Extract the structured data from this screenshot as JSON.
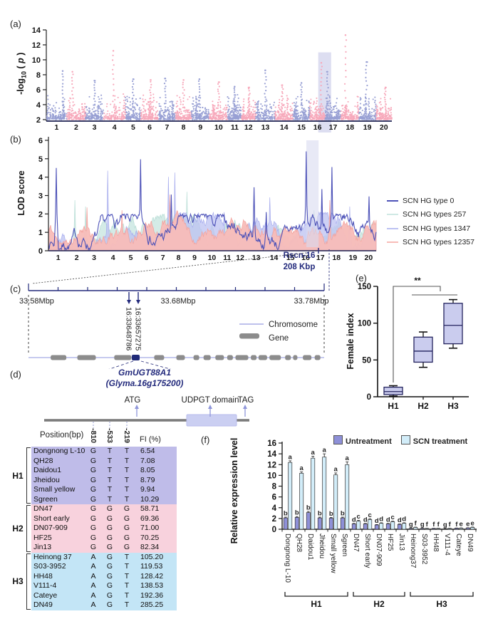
{
  "colors": {
    "manhattan_odd": "#98a0d4",
    "manhattan_even": "#f7a9bb",
    "highlight_band": "#d9daf0",
    "navy": "#232a7c",
    "axis": "#1c2050",
    "lod_type0": "#4d52b8",
    "lod_257_fill": "#cfe9e4",
    "lod_1347_fill": "#bcc1f2",
    "lod_12357_fill": "#f8bcb8",
    "gene_gray": "#8c8c8c",
    "chromosome_line": "#b4b8ea",
    "domain_fill": "#cbcff2",
    "h1_bg": "#bfbce9",
    "h2_bg": "#f8d2dd",
    "h3_bg": "#c3e5f6",
    "box_fill": "#caccee",
    "bar_untreat": "#8e90d8",
    "bar_scn": "#d2edf9"
  },
  "panels": {
    "a": {
      "label": "(a)"
    },
    "b": {
      "label": "(b)"
    },
    "c": {
      "label": "(c)",
      "region_name": "Rscn-16",
      "region_size": "208 Kbp",
      "ruler_labels": [
        "33.58Mbp",
        "33.68Mbp",
        "33.78Mbp"
      ],
      "snps": [
        "16:33648786",
        "16:33657275"
      ],
      "legend": {
        "chromosome": "Chromosome",
        "gene": "Gene"
      }
    },
    "d": {
      "label": "(d)",
      "gene_name": "GmUGT88A1",
      "gene_id": "(Glyma.16g175200)",
      "features": [
        "ATG",
        "UDPGT domain",
        "TAG"
      ],
      "position_header": "Position(bp)",
      "position_columns": [
        "-810",
        "-533",
        "-219"
      ],
      "fi_header": "FI (%)",
      "haplotypes": [
        {
          "name": "H1",
          "rows": [
            [
              "Dongnong L-10",
              "G",
              "T",
              "T",
              "6.54"
            ],
            [
              "QH28",
              "G",
              "T",
              "T",
              "7.08"
            ],
            [
              "Daidou1",
              "G",
              "T",
              "T",
              "8.05"
            ],
            [
              "Jheidou",
              "G",
              "T",
              "T",
              "8.79"
            ],
            [
              "Small yellow",
              "G",
              "T",
              "T",
              "9.94"
            ],
            [
              "Sgreen",
              "G",
              "T",
              "T",
              "10.29"
            ]
          ]
        },
        {
          "name": "H2",
          "rows": [
            [
              "DN47",
              "G",
              "G",
              "G",
              "58.71"
            ],
            [
              "Short early",
              "G",
              "G",
              "G",
              "69.36"
            ],
            [
              "DN07-909",
              "G",
              "G",
              "G",
              "71.00"
            ],
            [
              "HF25",
              "G",
              "G",
              "G",
              "70.25"
            ],
            [
              "Jin13",
              "G",
              "G",
              "G",
              "82.34"
            ]
          ]
        },
        {
          "name": "H3",
          "rows": [
            [
              "Heinong 37",
              "A",
              "G",
              "T",
              "105.20"
            ],
            [
              "S03-3952",
              "A",
              "G",
              "T",
              "119.53"
            ],
            [
              "HH48",
              "A",
              "G",
              "T",
              "128.42"
            ],
            [
              "V111-4",
              "A",
              "G",
              "T",
              "138.53"
            ],
            [
              "Cateye",
              "A",
              "G",
              "T",
              "192.36"
            ],
            [
              "DN49",
              "A",
              "G",
              "T",
              "285.25"
            ]
          ]
        }
      ]
    },
    "e": {
      "label": "(e)"
    },
    "f": {
      "label": "(f)"
    }
  },
  "chart_data": [
    {
      "id": "manhattan",
      "type": "scatter",
      "ylabel": "-log10(p)",
      "ylabel_parts": {
        "pre": "-log",
        "sub": "10",
        "open": " ( ",
        "p": "p",
        "close": " )"
      },
      "ylim": [
        1.8,
        14
      ],
      "yticks": [
        2,
        4,
        6,
        8,
        10,
        12,
        14
      ],
      "categories": [
        "1",
        "2",
        "3",
        "4",
        "5",
        "6",
        "7",
        "8",
        "9",
        "10",
        "11",
        "12",
        "13",
        "14",
        "15",
        "16",
        "17",
        "18",
        "19",
        "20"
      ],
      "chrom_rel_widths": [
        1.15,
        1.05,
        1.0,
        1.25,
        0.85,
        1.0,
        0.95,
        0.9,
        1.0,
        1.05,
        0.75,
        0.8,
        1.1,
        1.0,
        0.95,
        0.85,
        0.9,
        1.0,
        0.95,
        0.9
      ],
      "chrom_peak_values": [
        8.5,
        8.4,
        7.2,
        11.2,
        7.4,
        7.3,
        7.5,
        7.3,
        7.4,
        7.0,
        6.4,
        6.3,
        8.6,
        6.6,
        6.9,
        9.6,
        8.4,
        13.3,
        9.7,
        6.3
      ],
      "chrom_peak_fracs": [
        0.8,
        0.3,
        0.5,
        0.45,
        0.5,
        0.55,
        0.4,
        0.5,
        0.45,
        0.5,
        0.5,
        0.55,
        0.5,
        0.4,
        0.5,
        0.75,
        0.15,
        0.25,
        0.45,
        0.6
      ],
      "highlight_chr_range": [
        15.55,
        16.38
      ],
      "grid": false,
      "legend_position": "none"
    },
    {
      "id": "lod",
      "type": "line",
      "ylabel": "LOD score",
      "ylim": [
        0,
        6
      ],
      "yticks": [
        0,
        1,
        2,
        3,
        4,
        5,
        6
      ],
      "categories": [
        "1",
        "2",
        "3",
        "4",
        "5",
        "6",
        "7",
        "8",
        "9",
        "10",
        "11",
        "12",
        "13",
        "14",
        "15",
        "16",
        "17",
        "18",
        "19",
        "20"
      ],
      "series": [
        {
          "name": "SCN HG type 0",
          "color": "#4d52b8",
          "style": "line",
          "peaks": [
            [
              0.5,
              4.5
            ],
            [
              5.62,
              4.97
            ],
            [
              7.5,
              3.05
            ],
            [
              12.55,
              3.45
            ],
            [
              13.3,
              2.1
            ],
            [
              15.75,
              5.4
            ],
            [
              16.7,
              3.35
            ],
            [
              17.3,
              4.55
            ],
            [
              19.55,
              2.95
            ]
          ]
        },
        {
          "name": "SCN HG types 257",
          "color": "#cfe9e4",
          "style": "area",
          "peaks": [
            [
              1.6,
              2.75
            ],
            [
              2.25,
              2.4
            ],
            [
              8.45,
              3.2
            ],
            [
              16.2,
              2.2
            ]
          ]
        },
        {
          "name": "SCN HG types 1347",
          "color": "#bcc1f2",
          "style": "area",
          "peaks": [
            [
              3.62,
              4.35
            ],
            [
              7.3,
              4.02
            ],
            [
              7.72,
              4.25
            ],
            [
              10.7,
              2.1
            ],
            [
              13.5,
              2.9
            ],
            [
              18.4,
              2.4
            ]
          ]
        },
        {
          "name": "SCN HG types 12357",
          "color": "#f8bcb8",
          "style": "area",
          "peaks": [
            [
              2.35,
              2.35
            ],
            [
              4.5,
              2.2
            ],
            [
              7.42,
              3.05
            ],
            [
              17.15,
              2.75
            ]
          ]
        }
      ],
      "highlight_chr_range": [
        15.55,
        16.38
      ],
      "annotation": {
        "name": "Rscn-16",
        "size": "208 Kbp"
      },
      "legend_position": "right"
    },
    {
      "id": "female-index",
      "type": "box",
      "ylabel": "Female index",
      "ylim": [
        0,
        150
      ],
      "yticks": [
        0,
        50,
        100,
        150
      ],
      "categories": [
        "H1",
        "H2",
        "H3"
      ],
      "boxes": [
        {
          "whisker_low": 1,
          "q1": 3,
          "median": 7,
          "q3": 13,
          "whisker_high": 15
        },
        {
          "whisker_low": 40,
          "q1": 47,
          "median": 62,
          "q3": 81,
          "whisker_high": 88
        },
        {
          "whisker_low": 66,
          "q1": 72,
          "median": 97,
          "q3": 127,
          "whisker_high": 132
        }
      ],
      "significance": "**"
    },
    {
      "id": "expression",
      "type": "bar",
      "ylabel": "Relative expression level",
      "ylim": [
        0,
        16
      ],
      "yticks": [
        0,
        2,
        4,
        6,
        8,
        10,
        12,
        14,
        16
      ],
      "categories": [
        "Dongnong L-10",
        "QH28",
        "Daidou1",
        "Jheidou",
        "Small yellow",
        "Sgreen",
        "DN47",
        "Short early",
        "DN07-909",
        "HF25",
        "Jin13",
        "Heinong37",
        "S03-3952",
        "HH48",
        "V111-4",
        "Cateye",
        "DN49"
      ],
      "groups": [
        {
          "label": "H1",
          "from": 0,
          "to": 5
        },
        {
          "label": "H2",
          "from": 6,
          "to": 10
        },
        {
          "label": "H3",
          "from": 11,
          "to": 16
        }
      ],
      "series": [
        {
          "name": "Untreatment",
          "color": "#8e90d8",
          "values": [
            2.1,
            2.2,
            3.1,
            2.1,
            2.05,
            2.1,
            1.0,
            1.0,
            0.8,
            1.0,
            0.9,
            0.15,
            0.15,
            0.15,
            0.1,
            0.2,
            0.25
          ],
          "errors": [
            0.15,
            0.15,
            0.2,
            0.15,
            0.15,
            0.15,
            0.08,
            0.08,
            0.08,
            0.08,
            0.08,
            0.03,
            0.03,
            0.03,
            0.03,
            0.03,
            0.03
          ],
          "letters": [
            "b",
            "b",
            "b",
            "b",
            "b",
            "b",
            "d",
            "d",
            "d",
            "d",
            "d",
            "g",
            "g",
            "f",
            "g",
            "f",
            "e"
          ]
        },
        {
          "name": "SCN treatment",
          "color": "#d2edf9",
          "values": [
            12.4,
            10.4,
            13.2,
            13.4,
            10.1,
            12.0,
            1.5,
            1.8,
            1.1,
            1.4,
            1.1,
            0.35,
            0.15,
            0.15,
            0.15,
            0.2,
            0.35
          ],
          "errors": [
            0.3,
            0.25,
            0.35,
            0.6,
            0.35,
            0.5,
            0.15,
            0.15,
            0.1,
            0.1,
            0.1,
            0.05,
            0.04,
            0.04,
            0.04,
            0.05,
            0.06
          ],
          "letters": [
            "a",
            "a",
            "a",
            "a",
            "a",
            "a",
            "c",
            "c",
            "d",
            "c",
            "d",
            "f",
            "f",
            "f",
            "f",
            "e",
            "e"
          ]
        }
      ]
    }
  ]
}
